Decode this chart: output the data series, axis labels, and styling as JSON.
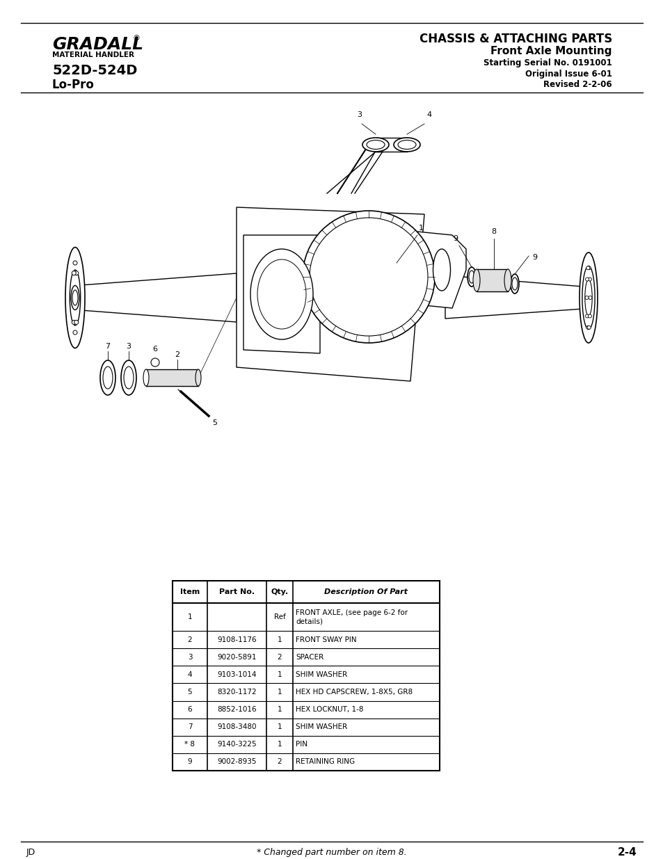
{
  "title_right_line1": "CHASSIS & ATTACHING PARTS",
  "title_right_line2": "Front Axle Mounting",
  "title_right_line3": "Starting Serial No. 0191001",
  "title_right_line4": "Original Issue 6-01",
  "title_right_line5": "Revised 2-2-06",
  "brand_line1": "GRADALL",
  "brand_line2": "MATERIAL HANDLER",
  "brand_line3": "522D-524D",
  "brand_line4": "Lo-Pro",
  "table_headers": [
    "Item",
    "Part No.",
    "Qty.",
    "Description Of Part"
  ],
  "table_rows": [
    [
      "1",
      "",
      "Ref",
      "FRONT AXLE, (see page 6-2 for\ndetails)"
    ],
    [
      "2",
      "9108-1176",
      "1",
      "FRONT SWAY PIN"
    ],
    [
      "3",
      "9020-5891",
      "2",
      "SPACER"
    ],
    [
      "4",
      "9103-1014",
      "1",
      "SHIM WASHER"
    ],
    [
      "5",
      "8320-1172",
      "1",
      "HEX HD CAPSCREW, 1-8X5, GR8"
    ],
    [
      "6",
      "8852-1016",
      "1",
      "HEX LOCKNUT, 1-8"
    ],
    [
      "7",
      "9108-3480",
      "1",
      "SHIM WASHER"
    ],
    [
      "* 8",
      "9140-3225",
      "1",
      "PIN"
    ],
    [
      "9",
      "9002-8935",
      "2",
      "RETAINING RING"
    ]
  ],
  "footer_left": "JD",
  "footer_center": "* Changed part number on item 8.",
  "footer_right": "2-4",
  "bg_color": "#ffffff",
  "text_color": "#000000"
}
